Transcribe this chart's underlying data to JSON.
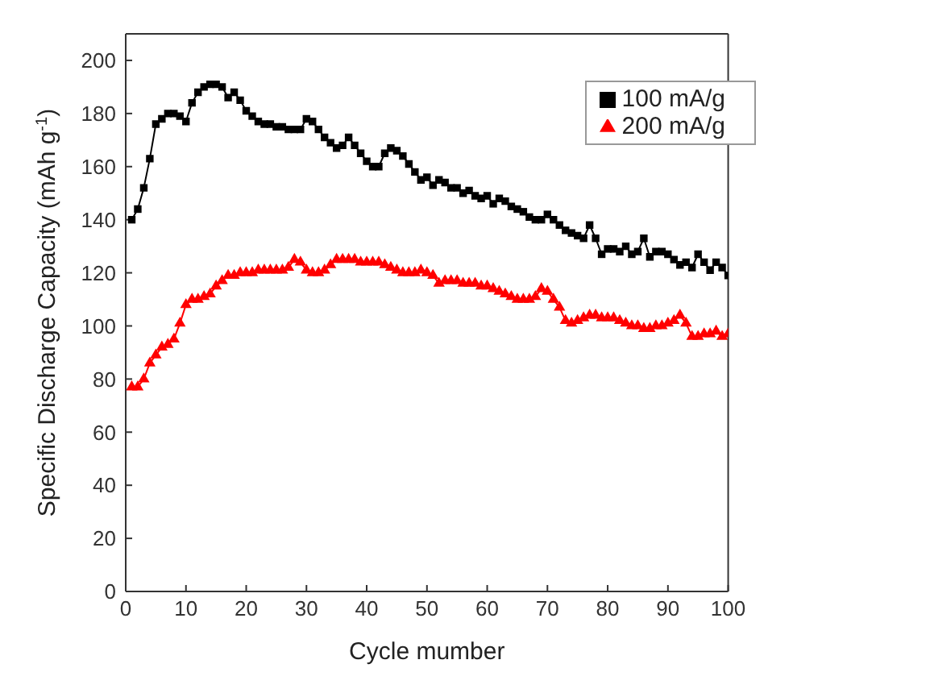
{
  "chart_data": {
    "type": "line",
    "xlabel": "Cycle mumber",
    "ylabel": "Specific Discharge Capacity (mAh g$^{-1}$)",
    "x": [
      1,
      2,
      3,
      4,
      5,
      6,
      7,
      8,
      9,
      10,
      11,
      12,
      13,
      14,
      15,
      16,
      17,
      18,
      19,
      20,
      21,
      22,
      23,
      24,
      25,
      26,
      27,
      28,
      29,
      30,
      31,
      32,
      33,
      34,
      35,
      36,
      37,
      38,
      39,
      40,
      41,
      42,
      43,
      44,
      45,
      46,
      47,
      48,
      49,
      50,
      51,
      52,
      53,
      54,
      55,
      56,
      57,
      58,
      59,
      60,
      61,
      62,
      63,
      64,
      65,
      66,
      67,
      68,
      69,
      70,
      71,
      72,
      73,
      74,
      75,
      76,
      77,
      78,
      79,
      80,
      81,
      82,
      83,
      84,
      85,
      86,
      87,
      88,
      89,
      90,
      91,
      92,
      93,
      94,
      95,
      96,
      97,
      98,
      99,
      100
    ],
    "series": [
      {
        "name": "100 mA/g",
        "color": "#000000",
        "marker": "square",
        "values": [
          140,
          144,
          152,
          163,
          176,
          178,
          180,
          180,
          179,
          177,
          184,
          188,
          190,
          191,
          191,
          190,
          186,
          188,
          185,
          181,
          179,
          177,
          176,
          176,
          175,
          175,
          174,
          174,
          174,
          178,
          177,
          174,
          171,
          169,
          167,
          168,
          171,
          168,
          165,
          162,
          160,
          160,
          165,
          167,
          166,
          164,
          161,
          158,
          155,
          156,
          153,
          155,
          154,
          152,
          152,
          150,
          151,
          149,
          148,
          149,
          146,
          148,
          147,
          145,
          144,
          143,
          141,
          140,
          140,
          142,
          140,
          138,
          136,
          135,
          134,
          133,
          138,
          133,
          127,
          129,
          129,
          128,
          130,
          127,
          128,
          133,
          126,
          128,
          128,
          127,
          125,
          123,
          124,
          122,
          127,
          124,
          121,
          124,
          122,
          119
        ]
      },
      {
        "name": "200 mA/g",
        "color": "#ff0000",
        "marker": "triangle",
        "values": [
          77,
          77,
          80,
          86,
          89,
          92,
          93,
          95,
          101,
          108,
          110,
          110,
          111,
          112,
          115,
          117,
          119,
          119,
          120,
          120,
          120,
          121,
          121,
          121,
          121,
          121,
          122,
          125,
          124,
          121,
          120,
          120,
          121,
          123,
          125,
          125,
          125,
          125,
          124,
          124,
          124,
          124,
          123,
          122,
          121,
          120,
          120,
          120,
          121,
          120,
          119,
          116,
          117,
          117,
          117,
          116,
          116,
          116,
          115,
          115,
          114,
          113,
          112,
          111,
          110,
          110,
          110,
          111,
          114,
          113,
          110,
          107,
          102,
          101,
          102,
          103,
          104,
          104,
          103,
          103,
          103,
          102,
          101,
          100,
          100,
          99,
          99,
          100,
          100,
          101,
          102,
          104,
          101,
          96,
          96,
          97,
          97,
          98,
          96,
          97
        ]
      }
    ],
    "xlim": [
      0,
      100
    ],
    "xticks": [
      0,
      10,
      20,
      30,
      40,
      50,
      60,
      70,
      80,
      90,
      100
    ],
    "ylim": [
      0,
      210
    ],
    "yticks": [
      0,
      20,
      40,
      60,
      80,
      100,
      120,
      140,
      160,
      180,
      200
    ],
    "legend": "top right",
    "grid": false
  }
}
